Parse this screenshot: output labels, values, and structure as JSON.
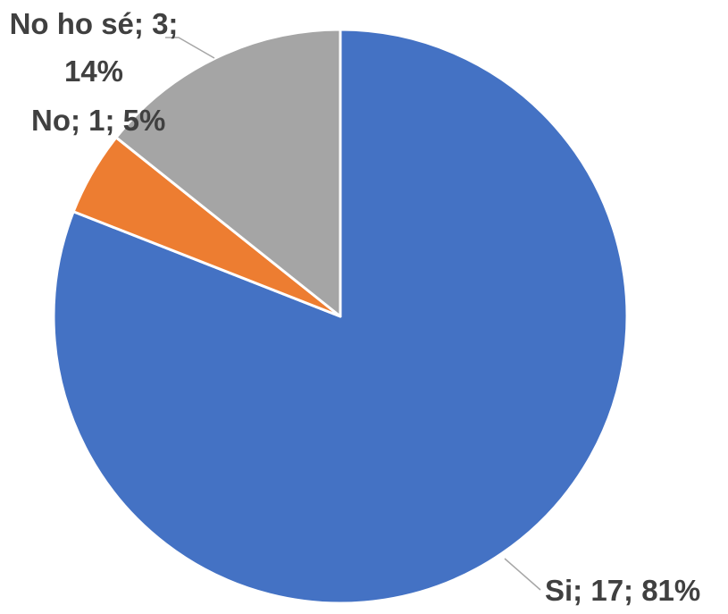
{
  "chart_data": {
    "type": "pie",
    "categories": [
      "Si",
      "No",
      "No ho sé"
    ],
    "values": [
      17,
      1,
      3
    ],
    "value_labels": [
      "Si; 17; 81%",
      "No; 1; 5%",
      "No ho sé; 3; 14%"
    ],
    "colors": [
      "#4472c4",
      "#ed7d31",
      "#a5a5a5"
    ]
  }
}
